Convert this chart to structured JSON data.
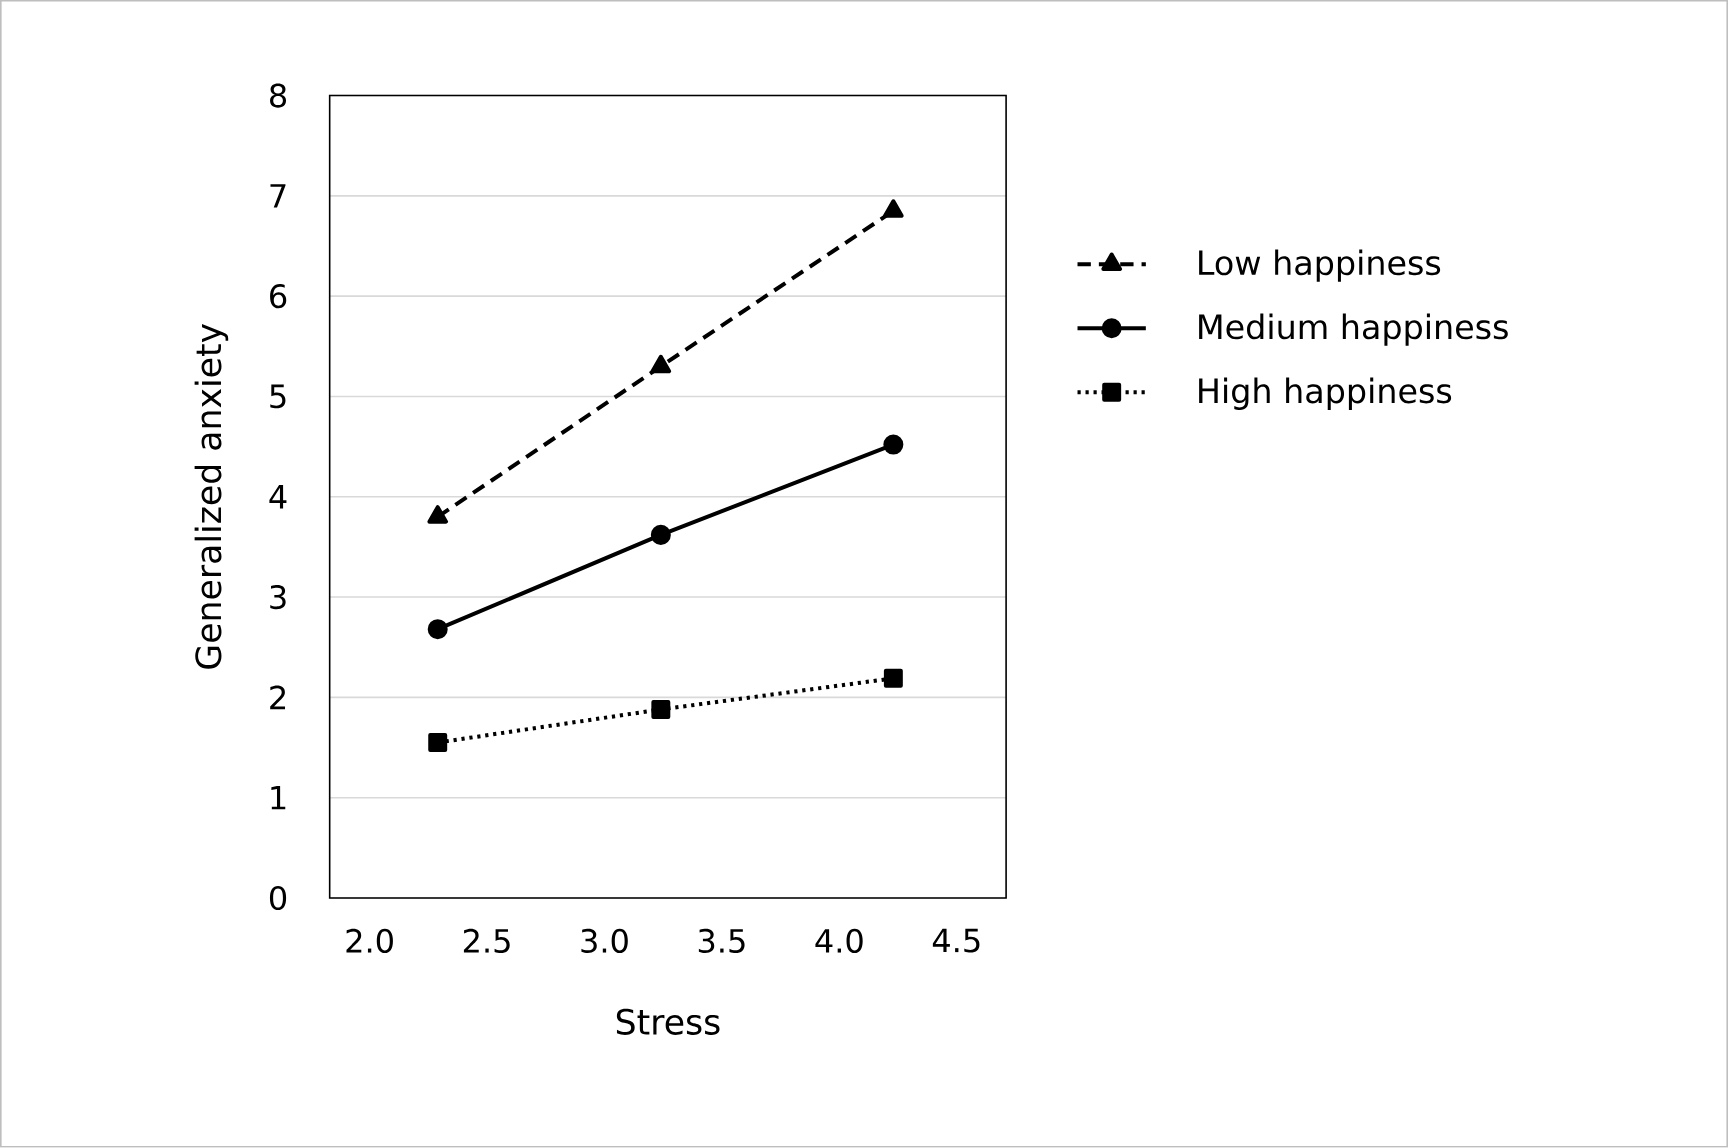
{
  "chart_data": {
    "type": "line",
    "xlabel": "Stress",
    "ylabel": "Generalized anxiety",
    "x": [
      2.29,
      3.24,
      4.23
    ],
    "series": [
      {
        "name": "Low happiness",
        "color": "#000000",
        "marker": "triangle",
        "line_style": "dashed",
        "values": [
          3.8,
          5.3,
          6.85
        ]
      },
      {
        "name": "Medium happiness",
        "color": "#000000",
        "marker": "circle",
        "line_style": "solid",
        "values": [
          2.68,
          3.62,
          4.52
        ]
      },
      {
        "name": "High happiness",
        "color": "#000000",
        "marker": "square",
        "line_style": "dotted",
        "values": [
          1.55,
          1.88,
          2.19
        ]
      }
    ],
    "xlim": [
      1.83,
      4.71
    ],
    "ylim": [
      0,
      8
    ],
    "xticks": [
      {
        "value": 2.0,
        "label": "2.0"
      },
      {
        "value": 2.5,
        "label": "2.5"
      },
      {
        "value": 3.0,
        "label": "3.0"
      },
      {
        "value": 3.5,
        "label": "3.5"
      },
      {
        "value": 4.0,
        "label": "4.0"
      },
      {
        "value": 4.5,
        "label": "4.5"
      }
    ],
    "yticks": [
      0,
      1,
      2,
      3,
      4,
      5,
      6,
      7,
      8
    ],
    "grid": "y",
    "legend": "right"
  }
}
